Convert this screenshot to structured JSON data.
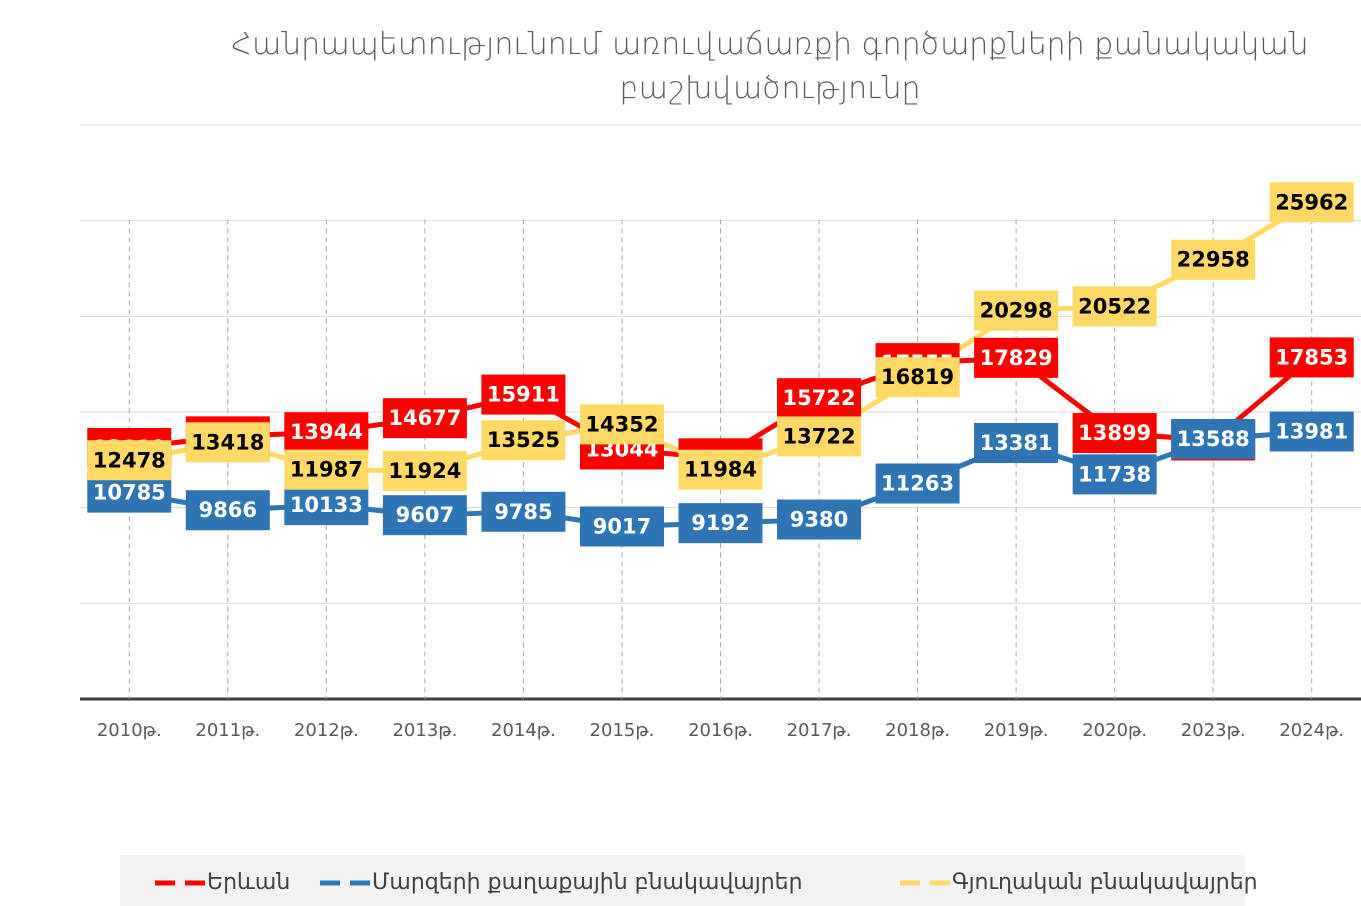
{
  "chart_data": {
    "type": "line",
    "title": "Հանրապետությունում առուվաճառքի գործարքների քանակական բաշխվածությունը",
    "categories": [
      "2010թ.",
      "2011թ.",
      "2012թ.",
      "2013թ.",
      "2014թ.",
      "2015թ.",
      "2016թ.",
      "2017թ.",
      "2018թ.",
      "2019թ.",
      "2020թ.",
      "2023թ.",
      "2024թ."
    ],
    "series": [
      {
        "name": "Երևան",
        "color": "#ff0000",
        "values": [
          13119,
          13727,
          13944,
          14677,
          15911,
          13044,
          12578,
          15722,
          17555,
          17829,
          13899,
          13513,
          17853
        ]
      },
      {
        "name": "Մարզերի քաղաքային բնակավայրեր",
        "color": "#2e75b6",
        "values": [
          10785,
          9866,
          10133,
          9607,
          9785,
          9017,
          9192,
          9380,
          11263,
          13381,
          11738,
          13588,
          13981
        ]
      },
      {
        "name": "Գյուղական բնակավայրեր",
        "color": "#ffd966",
        "values": [
          12478,
          13418,
          11987,
          11924,
          13525,
          14352,
          11984,
          13722,
          16819,
          20298,
          20522,
          22958,
          25962
        ]
      }
    ],
    "ylim": [
      0,
      30000
    ],
    "yticks": [
      0,
      5000,
      10000,
      15000,
      20000,
      25000,
      30000
    ],
    "grid": true
  }
}
